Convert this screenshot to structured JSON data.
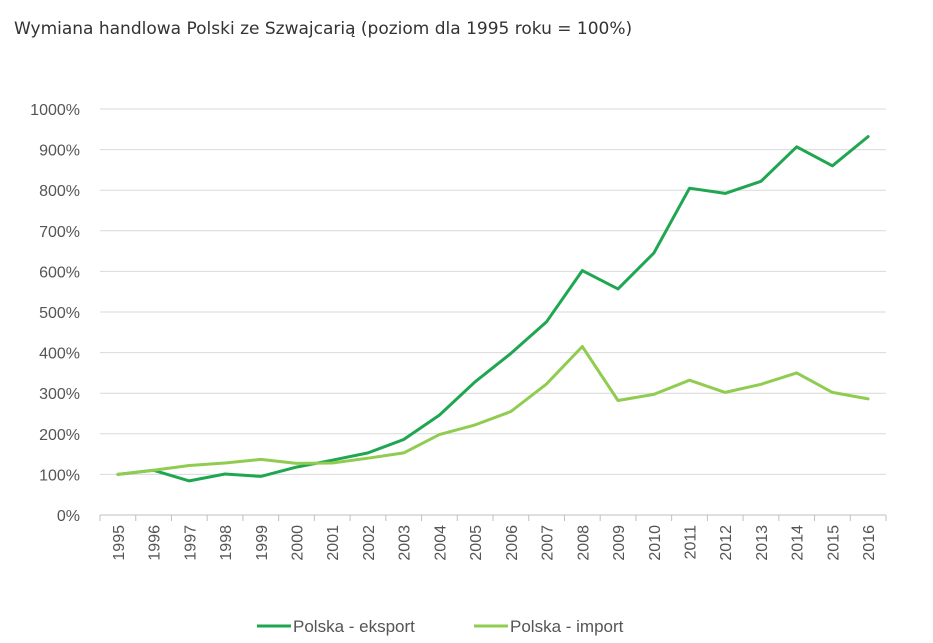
{
  "chart_data": {
    "type": "line",
    "title": "Wymiana handlowa Polski ze Szwajcarią (poziom dla 1995 roku = 100%)",
    "xlabel": "",
    "ylabel": "",
    "ylim": [
      0,
      1000
    ],
    "y_ticks": [
      "0%",
      "100%",
      "200%",
      "300%",
      "400%",
      "500%",
      "600%",
      "700%",
      "800%",
      "900%",
      "1000%"
    ],
    "categories": [
      "1995",
      "1996",
      "1997",
      "1998",
      "1999",
      "2000",
      "2001",
      "2002",
      "2003",
      "2004",
      "2005",
      "2006",
      "2007",
      "2008",
      "2009",
      "2010",
      "2011",
      "2012",
      "2013",
      "2014",
      "2015",
      "2016"
    ],
    "grid": true,
    "legend_position": "bottom",
    "series": [
      {
        "name": "Polska - eksport",
        "color": "#1fa651",
        "values": [
          100,
          110,
          84,
          101,
          95,
          118,
          135,
          153,
          186,
          246,
          328,
          398,
          476,
          602,
          557,
          645,
          805,
          792,
          822,
          907,
          860,
          932
        ]
      },
      {
        "name": "Polska - import",
        "color": "#8fcc4f",
        "values": [
          100,
          110,
          122,
          128,
          137,
          127,
          128,
          140,
          153,
          198,
          222,
          255,
          323,
          415,
          282,
          297,
          332,
          302,
          322,
          350,
          302,
          286
        ]
      }
    ]
  }
}
